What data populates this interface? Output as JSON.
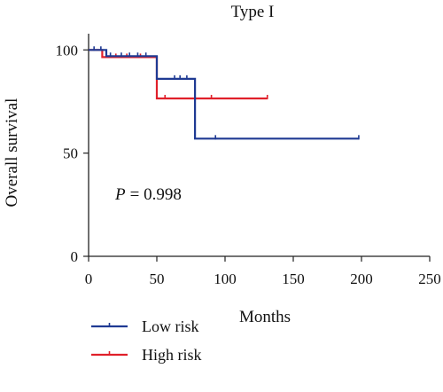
{
  "chart_data": {
    "type": "line",
    "title": "Type I",
    "xlabel": "Months",
    "ylabel": "Overall survival",
    "xlim": [
      0,
      250
    ],
    "ylim": [
      0,
      110
    ],
    "xticks": [
      "0",
      "50",
      "100",
      "150",
      "200",
      "250"
    ],
    "yticks": [
      "0",
      "50",
      "100"
    ],
    "annotation": "P = 0.998",
    "annotation_p_label": "P",
    "annotation_p_value": "= 0.998",
    "grid": false,
    "legend_position": "bottom-left",
    "series": [
      {
        "name": "Low risk",
        "color": "#1f3a93",
        "steps": [
          [
            0,
            100
          ],
          [
            13,
            100
          ],
          [
            13,
            97
          ],
          [
            50,
            97
          ],
          [
            50,
            86
          ],
          [
            78,
            86
          ],
          [
            78,
            57
          ],
          [
            198,
            57
          ]
        ],
        "censored": [
          [
            4,
            100
          ],
          [
            9,
            100
          ],
          [
            16,
            97
          ],
          [
            24,
            97
          ],
          [
            30,
            97
          ],
          [
            36,
            97
          ],
          [
            42,
            97
          ],
          [
            63,
            86
          ],
          [
            67,
            86
          ],
          [
            72,
            86
          ],
          [
            93,
            57
          ],
          [
            198,
            57
          ]
        ]
      },
      {
        "name": "High risk",
        "color": "#e0202a",
        "steps": [
          [
            0,
            100
          ],
          [
            10,
            100
          ],
          [
            10,
            96.5
          ],
          [
            50,
            96.5
          ],
          [
            50,
            76.5
          ],
          [
            131,
            76.5
          ]
        ],
        "censored": [
          [
            20,
            96.5
          ],
          [
            28,
            96.5
          ],
          [
            38,
            96.5
          ],
          [
            56,
            76.5
          ],
          [
            90,
            76.5
          ],
          [
            131,
            76.5
          ]
        ]
      }
    ]
  }
}
